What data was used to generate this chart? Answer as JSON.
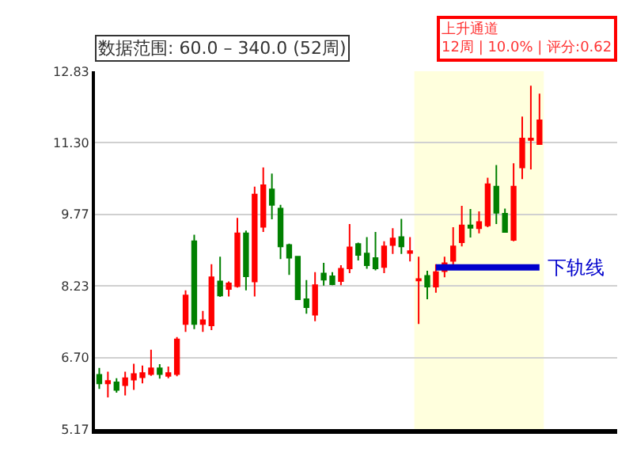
{
  "chart_data": {
    "type": "candlestick",
    "title": "数据范围: 60.0 – 340.0 (52周)",
    "categories": [
      null,
      null,
      null,
      null,
      null,
      null,
      null,
      null,
      null,
      null,
      null,
      null,
      null,
      null,
      null,
      null,
      null,
      null,
      null,
      null,
      null,
      null,
      null,
      null,
      null,
      null,
      null,
      null,
      null,
      null,
      null,
      null,
      null,
      null,
      null,
      null,
      null,
      null,
      null,
      null,
      null,
      null,
      null,
      null,
      null,
      null,
      null,
      null,
      null,
      null,
      null,
      null
    ],
    "ohlc": [
      [
        6.33,
        6.48,
        6.03,
        6.15
      ],
      [
        6.15,
        6.4,
        5.85,
        6.2
      ],
      [
        6.17,
        6.26,
        5.95,
        6.01
      ],
      [
        6.11,
        6.4,
        5.89,
        6.26
      ],
      [
        6.23,
        6.57,
        6.01,
        6.35
      ],
      [
        6.28,
        6.53,
        6.15,
        6.37
      ],
      [
        6.35,
        6.87,
        6.31,
        6.47
      ],
      [
        6.47,
        6.56,
        6.25,
        6.35
      ],
      [
        6.31,
        6.51,
        6.26,
        6.37
      ],
      [
        6.35,
        7.14,
        6.3,
        7.09
      ],
      [
        7.42,
        8.14,
        7.25,
        8.03
      ],
      [
        9.19,
        9.33,
        7.31,
        7.42
      ],
      [
        7.42,
        7.7,
        7.25,
        7.5
      ],
      [
        7.39,
        8.7,
        7.29,
        8.42
      ],
      [
        8.33,
        8.86,
        8.0,
        8.03
      ],
      [
        8.17,
        8.33,
        8.01,
        8.29
      ],
      [
        8.23,
        9.69,
        8.2,
        9.36
      ],
      [
        9.36,
        9.42,
        8.14,
        8.44
      ],
      [
        8.33,
        10.36,
        8.01,
        10.19
      ],
      [
        9.5,
        10.77,
        9.39,
        10.39
      ],
      [
        10.3,
        10.64,
        9.66,
        9.97
      ],
      [
        9.89,
        9.97,
        8.81,
        9.08
      ],
      [
        9.11,
        9.14,
        8.47,
        8.84
      ],
      [
        8.86,
        8.86,
        7.94,
        7.95
      ],
      [
        7.95,
        8.36,
        7.64,
        7.78
      ],
      [
        7.62,
        8.53,
        7.48,
        8.25
      ],
      [
        8.5,
        8.73,
        8.24,
        8.37
      ],
      [
        8.44,
        8.53,
        8.25,
        8.27
      ],
      [
        8.34,
        8.68,
        8.25,
        8.6
      ],
      [
        8.61,
        9.56,
        8.51,
        9.06
      ],
      [
        9.13,
        9.16,
        8.78,
        8.9
      ],
      [
        8.93,
        9.28,
        8.6,
        8.68
      ],
      [
        8.83,
        9.39,
        8.57,
        8.61
      ],
      [
        8.64,
        9.19,
        8.51,
        9.08
      ],
      [
        9.11,
        9.47,
        8.92,
        9.25
      ],
      [
        9.28,
        9.67,
        8.92,
        9.08
      ],
      [
        8.94,
        9.28,
        8.76,
        8.98
      ],
      [
        8.35,
        8.86,
        7.42,
        8.38
      ],
      [
        8.45,
        8.56,
        7.95,
        8.22
      ],
      [
        8.22,
        8.7,
        8.09,
        8.53
      ],
      [
        8.55,
        8.86,
        8.42,
        8.72
      ],
      [
        8.77,
        9.49,
        8.66,
        9.08
      ],
      [
        9.17,
        9.95,
        9.08,
        9.53
      ],
      [
        9.53,
        9.88,
        9.27,
        9.48
      ],
      [
        9.47,
        9.83,
        9.36,
        9.6
      ],
      [
        9.53,
        10.55,
        9.49,
        10.41
      ],
      [
        10.36,
        10.82,
        9.56,
        9.8
      ],
      [
        9.78,
        9.89,
        9.39,
        9.39
      ],
      [
        9.22,
        10.86,
        9.19,
        10.36
      ],
      [
        10.77,
        11.86,
        10.52,
        11.39
      ],
      [
        11.36,
        12.52,
        10.73,
        11.39
      ],
      [
        11.27,
        12.35,
        11.27,
        11.78
      ]
    ],
    "colors": [
      "#008000",
      "#ff0000",
      "#008000",
      "#ff0000",
      "#ff0000",
      "#ff0000",
      "#ff0000",
      "#008000",
      "#ff0000",
      "#ff0000",
      "#ff0000",
      "#008000",
      "#ff0000",
      "#ff0000",
      "#008000",
      "#ff0000",
      "#ff0000",
      "#008000",
      "#ff0000",
      "#ff0000",
      "#008000",
      "#008000",
      "#008000",
      "#008000",
      "#008000",
      "#ff0000",
      "#008000",
      "#008000",
      "#ff0000",
      "#ff0000",
      "#008000",
      "#008000",
      "#008000",
      "#ff0000",
      "#ff0000",
      "#008000",
      "#ff0000",
      "#ff0000",
      "#008000",
      "#ff0000",
      "#ff0000",
      "#ff0000",
      "#ff0000",
      "#008000",
      "#ff0000",
      "#ff0000",
      "#008000",
      "#008000",
      "#ff0000",
      "#ff0000",
      "#ff0000",
      "#ff0000"
    ],
    "series": [
      {
        "type": "line",
        "name": "下轨线",
        "color": "#0000cc",
        "values": [
          null,
          null,
          null,
          null,
          null,
          null,
          null,
          null,
          null,
          null,
          null,
          null,
          null,
          null,
          null,
          null,
          null,
          null,
          null,
          null,
          null,
          null,
          null,
          null,
          null,
          null,
          null,
          null,
          null,
          null,
          null,
          null,
          null,
          null,
          null,
          null,
          null,
          null,
          null,
          8.63,
          8.63,
          8.63,
          8.63,
          8.63,
          8.63,
          8.63,
          8.63,
          8.63,
          8.63,
          8.63,
          8.63,
          8.63
        ]
      }
    ],
    "annotations": [
      "上升通道\n12周 | 10.0% | 评分:0.62"
    ],
    "ylim": [
      5.17,
      12.83
    ],
    "yticks": [
      5.17,
      {
        "value": 6.7,
        "label": "6.70"
      },
      8.23,
      9.77,
      {
        "value": 11.3,
        "label": "11.30"
      },
      12.83
    ],
    "grid": "y",
    "legend": false,
    "tick_labels": "y"
  }
}
